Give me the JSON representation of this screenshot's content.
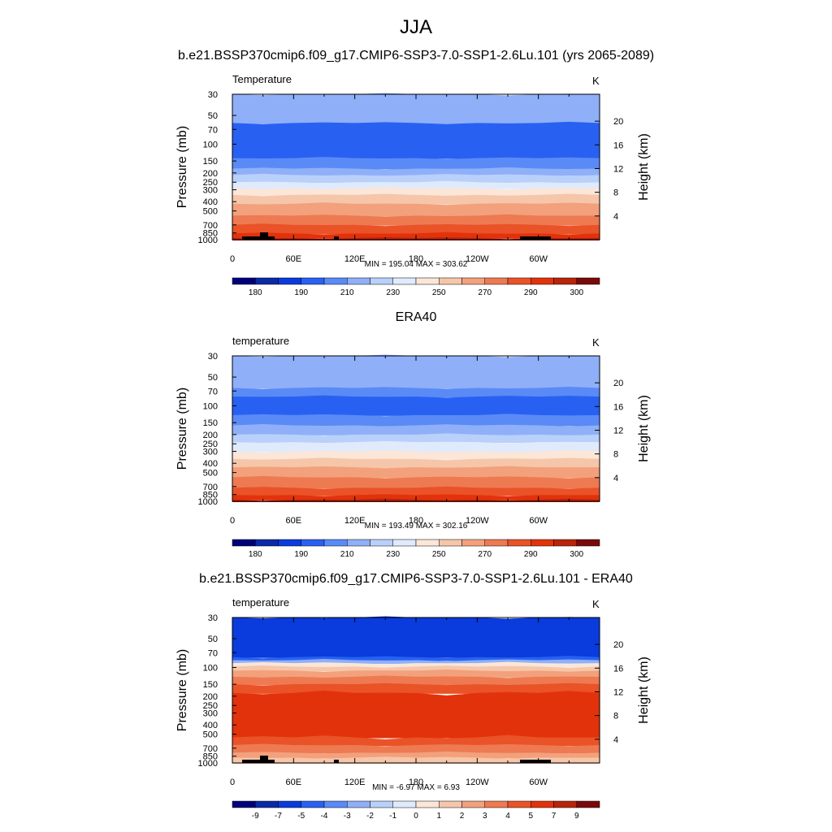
{
  "title": "JJA",
  "chart_data": [
    {
      "type": "heatmap",
      "subtitle": "b.e21.BSSP370cmip6.f09_g17.CMIP6-SSP3-7.0-SSP1-2.6Lu.101 (yrs 2065-2089)",
      "left_label": "Temperature",
      "units": "K",
      "ylabel": "Pressure (mb)",
      "y2label": "Height (km)",
      "pressure_ticks": [
        "30",
        "50",
        "70",
        "100",
        "150",
        "200",
        "250",
        "300",
        "400",
        "500",
        "700",
        "850",
        "1000"
      ],
      "height_ticks": [
        "4",
        "8",
        "12",
        "16",
        "20"
      ],
      "longitude_ticks": [
        "0",
        "60E",
        "120E",
        "180",
        "120W",
        "60W"
      ],
      "minmax": "MIN = 195.04  MAX = 303.62",
      "colorbar_labels": [
        "180",
        "190",
        "210",
        "230",
        "250",
        "270",
        "290",
        "300"
      ],
      "colorbar_colors": [
        "#00007a",
        "#0a2aa6",
        "#0a3bdc",
        "#2861f2",
        "#5a8af6",
        "#8fb0f8",
        "#b9d0fa",
        "#dfeafc",
        "#fbe6d8",
        "#f6c6aa",
        "#f2a17c",
        "#ee7a52",
        "#ea5228",
        "#e2320c",
        "#b8250a",
        "#7a0a0a"
      ],
      "layers": [
        {
          "p_top": 30,
          "color": "#8fb0f8"
        },
        {
          "p_top": 60,
          "color": "#2861f2"
        },
        {
          "p_top": 140,
          "color": "#5a8af6"
        },
        {
          "p_top": 180,
          "color": "#8fb0f8"
        },
        {
          "p_top": 210,
          "color": "#b9d0fa"
        },
        {
          "p_top": 250,
          "color": "#dfeafc"
        },
        {
          "p_top": 290,
          "color": "#fbe6d8"
        },
        {
          "p_top": 340,
          "color": "#f6c6aa"
        },
        {
          "p_top": 420,
          "color": "#f2a17c"
        },
        {
          "p_top": 560,
          "color": "#ee7a52"
        },
        {
          "p_top": 700,
          "color": "#ea5228"
        },
        {
          "p_top": 860,
          "color": "#e2320c"
        },
        {
          "p_top": 960,
          "color": "#b8250a"
        }
      ],
      "terrain": true
    },
    {
      "type": "heatmap",
      "subtitle": "ERA40",
      "left_label": "temperature",
      "units": "K",
      "ylabel": "Pressure (mb)",
      "y2label": "Height (km)",
      "pressure_ticks": [
        "30",
        "50",
        "70",
        "100",
        "150",
        "200",
        "250",
        "300",
        "400",
        "500",
        "700",
        "850",
        "1000"
      ],
      "height_ticks": [
        "4",
        "8",
        "12",
        "16",
        "20"
      ],
      "longitude_ticks": [
        "0",
        "60E",
        "120E",
        "180",
        "120W",
        "60W"
      ],
      "minmax": "MIN = 193.49  MAX = 302.16",
      "colorbar_labels": [
        "180",
        "190",
        "210",
        "230",
        "250",
        "270",
        "290",
        "300"
      ],
      "colorbar_colors": [
        "#00007a",
        "#0a2aa6",
        "#0a3bdc",
        "#2861f2",
        "#5a8af6",
        "#8fb0f8",
        "#b9d0fa",
        "#dfeafc",
        "#fbe6d8",
        "#f6c6aa",
        "#f2a17c",
        "#ee7a52",
        "#ea5228",
        "#e2320c",
        "#b8250a",
        "#7a0a0a"
      ],
      "layers": [
        {
          "p_top": 30,
          "color": "#8fb0f8"
        },
        {
          "p_top": 65,
          "color": "#5a8af6"
        },
        {
          "p_top": 80,
          "color": "#2861f2"
        },
        {
          "p_top": 125,
          "color": "#5a8af6"
        },
        {
          "p_top": 160,
          "color": "#8fb0f8"
        },
        {
          "p_top": 200,
          "color": "#b9d0fa"
        },
        {
          "p_top": 240,
          "color": "#dfeafc"
        },
        {
          "p_top": 300,
          "color": "#fbe6d8"
        },
        {
          "p_top": 360,
          "color": "#f6c6aa"
        },
        {
          "p_top": 440,
          "color": "#f2a17c"
        },
        {
          "p_top": 560,
          "color": "#ee7a52"
        },
        {
          "p_top": 720,
          "color": "#ea5228"
        },
        {
          "p_top": 860,
          "color": "#e2320c"
        },
        {
          "p_top": 960,
          "color": "#b8250a"
        }
      ],
      "terrain": false
    },
    {
      "type": "heatmap",
      "subtitle": "b.e21.BSSP370cmip6.f09_g17.CMIP6-SSP3-7.0-SSP1-2.6Lu.101 - ERA40",
      "left_label": "temperature",
      "units": "K",
      "ylabel": "Pressure (mb)",
      "y2label": "Height (km)",
      "pressure_ticks": [
        "30",
        "50",
        "70",
        "100",
        "150",
        "200",
        "250",
        "300",
        "400",
        "500",
        "700",
        "850",
        "1000"
      ],
      "height_ticks": [
        "4",
        "8",
        "12",
        "16",
        "20"
      ],
      "longitude_ticks": [
        "0",
        "60E",
        "120E",
        "180",
        "120W",
        "60W"
      ],
      "minmax": "MIN =  -6.97  MAX =   6.93",
      "colorbar_labels": [
        "-9",
        "-7",
        "-5",
        "-4",
        "-3",
        "-2",
        "-1",
        "0",
        "1",
        "2",
        "3",
        "4",
        "5",
        "7",
        "9"
      ],
      "colorbar_colors": [
        "#00007a",
        "#0a2aa6",
        "#0a3bdc",
        "#2861f2",
        "#5a8af6",
        "#8fb0f8",
        "#b9d0fa",
        "#dfeafc",
        "#fbe6d8",
        "#f6c6aa",
        "#f2a17c",
        "#ee7a52",
        "#ea5228",
        "#e2320c",
        "#b8250a",
        "#7a0a0a"
      ],
      "layers": [
        {
          "p_top": 30,
          "color": "#0a3bdc"
        },
        {
          "p_top": 78,
          "color": "#2861f2"
        },
        {
          "p_top": 84,
          "color": "#8fb0f8"
        },
        {
          "p_top": 90,
          "color": "#fbe6d8"
        },
        {
          "p_top": 98,
          "color": "#f6c6aa"
        },
        {
          "p_top": 108,
          "color": "#f2a17c"
        },
        {
          "p_top": 125,
          "color": "#ee7a52"
        },
        {
          "p_top": 150,
          "color": "#ea5228"
        },
        {
          "p_top": 185,
          "color": "#e2320c"
        },
        {
          "p_top": 540,
          "color": "#ea5228"
        },
        {
          "p_top": 650,
          "color": "#ee7a52"
        },
        {
          "p_top": 780,
          "color": "#f2a17c"
        },
        {
          "p_top": 880,
          "color": "#f6c6aa"
        }
      ],
      "terrain": true
    }
  ]
}
